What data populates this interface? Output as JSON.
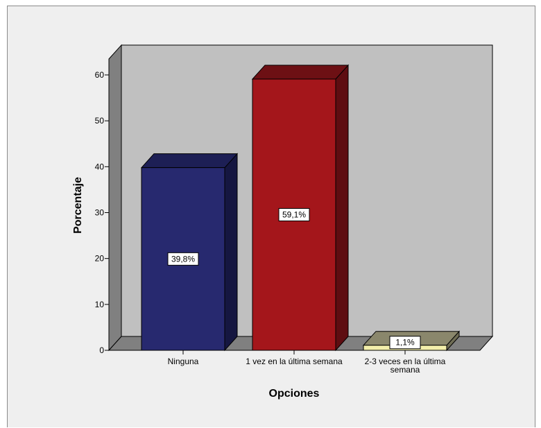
{
  "chart_data": {
    "type": "bar",
    "categories": [
      "Ninguna",
      "1 vez en la última semana",
      "2-3 veces en la última semana"
    ],
    "category_lines": [
      [
        "Ninguna"
      ],
      [
        "1 vez en la última semana"
      ],
      [
        "2-3 veces en la última",
        "semana"
      ]
    ],
    "values": [
      39.8,
      59.1,
      1.1
    ],
    "data_labels": [
      "39,8%",
      "59,1%",
      "1,1%"
    ],
    "xlabel": "Opciones",
    "ylabel": "Porcentaje",
    "ylim": [
      0,
      60
    ],
    "yticks": [
      0,
      10,
      20,
      30,
      40,
      50,
      60
    ],
    "grid": false,
    "legend": "none",
    "colors": {
      "bars": [
        {
          "front": "#27296f",
          "top": "#1d1f55",
          "side": "#151640"
        },
        {
          "front": "#a4161b",
          "top": "#6d1014",
          "side": "#5e0d11"
        },
        {
          "front": "#f2eeaa",
          "top": "#8a876c",
          "side": "#6f6d55"
        }
      ],
      "back_wall": "#c0c0c0",
      "side_wall": "#808080",
      "floor": "#808080",
      "frame_background": "#efefef"
    }
  }
}
